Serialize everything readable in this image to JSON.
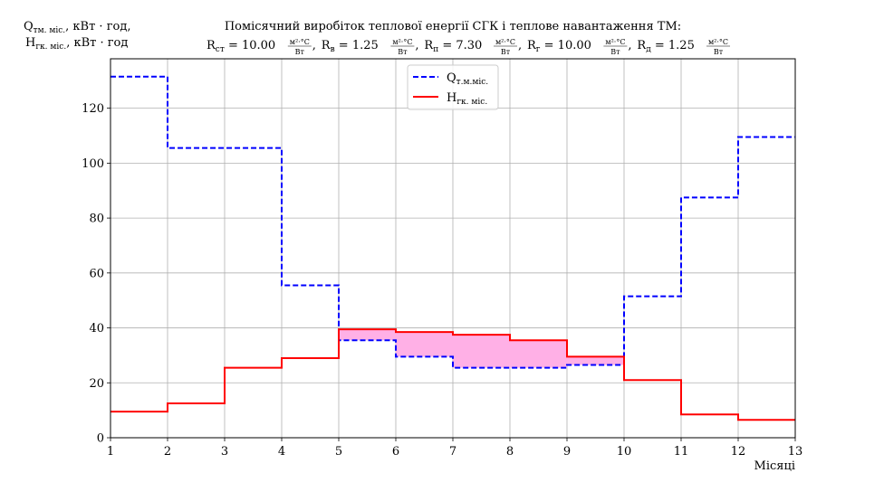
{
  "chart_data": {
    "type": "line",
    "drawstyle": "steps-post",
    "title_line1": "Помісячний виробіток теплової енергії СГК і теплове навантаження ТМ:",
    "title_params": [
      {
        "sym": "R",
        "sub": "ст",
        "value": "10.00"
      },
      {
        "sym": "R",
        "sub": "в",
        "value": "1.25"
      },
      {
        "sym": "R",
        "sub": "п",
        "value": "7.30"
      },
      {
        "sym": "R",
        "sub": "г",
        "value": "10.00"
      },
      {
        "sym": "R",
        "sub": "д",
        "value": "1.25"
      }
    ],
    "unit_num": "м²·°С",
    "unit_den": "Вт",
    "ylabel_line1": {
      "sym": "Q",
      "sub": "тм. міс.",
      "rest": ", кВт · год,"
    },
    "ylabel_line2": {
      "sym": "H",
      "sub": "гк. міс.",
      "rest": ", кВт · год"
    },
    "xlabel": "Місяці",
    "xlim": [
      1,
      13
    ],
    "ylim": [
      0,
      138
    ],
    "xticks": [
      1,
      2,
      3,
      4,
      5,
      6,
      7,
      8,
      9,
      10,
      11,
      12,
      13
    ],
    "yticks": [
      0,
      20,
      40,
      60,
      80,
      100,
      120
    ],
    "grid": true,
    "legend_position": "top-center",
    "x": [
      1,
      2,
      3,
      4,
      5,
      6,
      7,
      8,
      9,
      10,
      11,
      12,
      13
    ],
    "series": [
      {
        "name": {
          "sym": "Q",
          "sub": "т.м.міс."
        },
        "color": "#0000ff",
        "style": "dashed",
        "values": [
          131.5,
          105.5,
          105.5,
          55.5,
          35.5,
          29.5,
          25.5,
          25.5,
          26.5,
          51.5,
          87.5,
          109.5,
          109.5
        ]
      },
      {
        "name": {
          "sym": "H",
          "sub": "гк. міс."
        },
        "color": "#ff0000",
        "style": "solid",
        "values": [
          9.5,
          12.5,
          25.5,
          29.0,
          39.5,
          38.5,
          37.5,
          35.5,
          29.5,
          21.0,
          8.5,
          6.5,
          6.5
        ]
      }
    ],
    "fill_between": {
      "color": "#ffb0e6",
      "where": "H > Q"
    }
  }
}
